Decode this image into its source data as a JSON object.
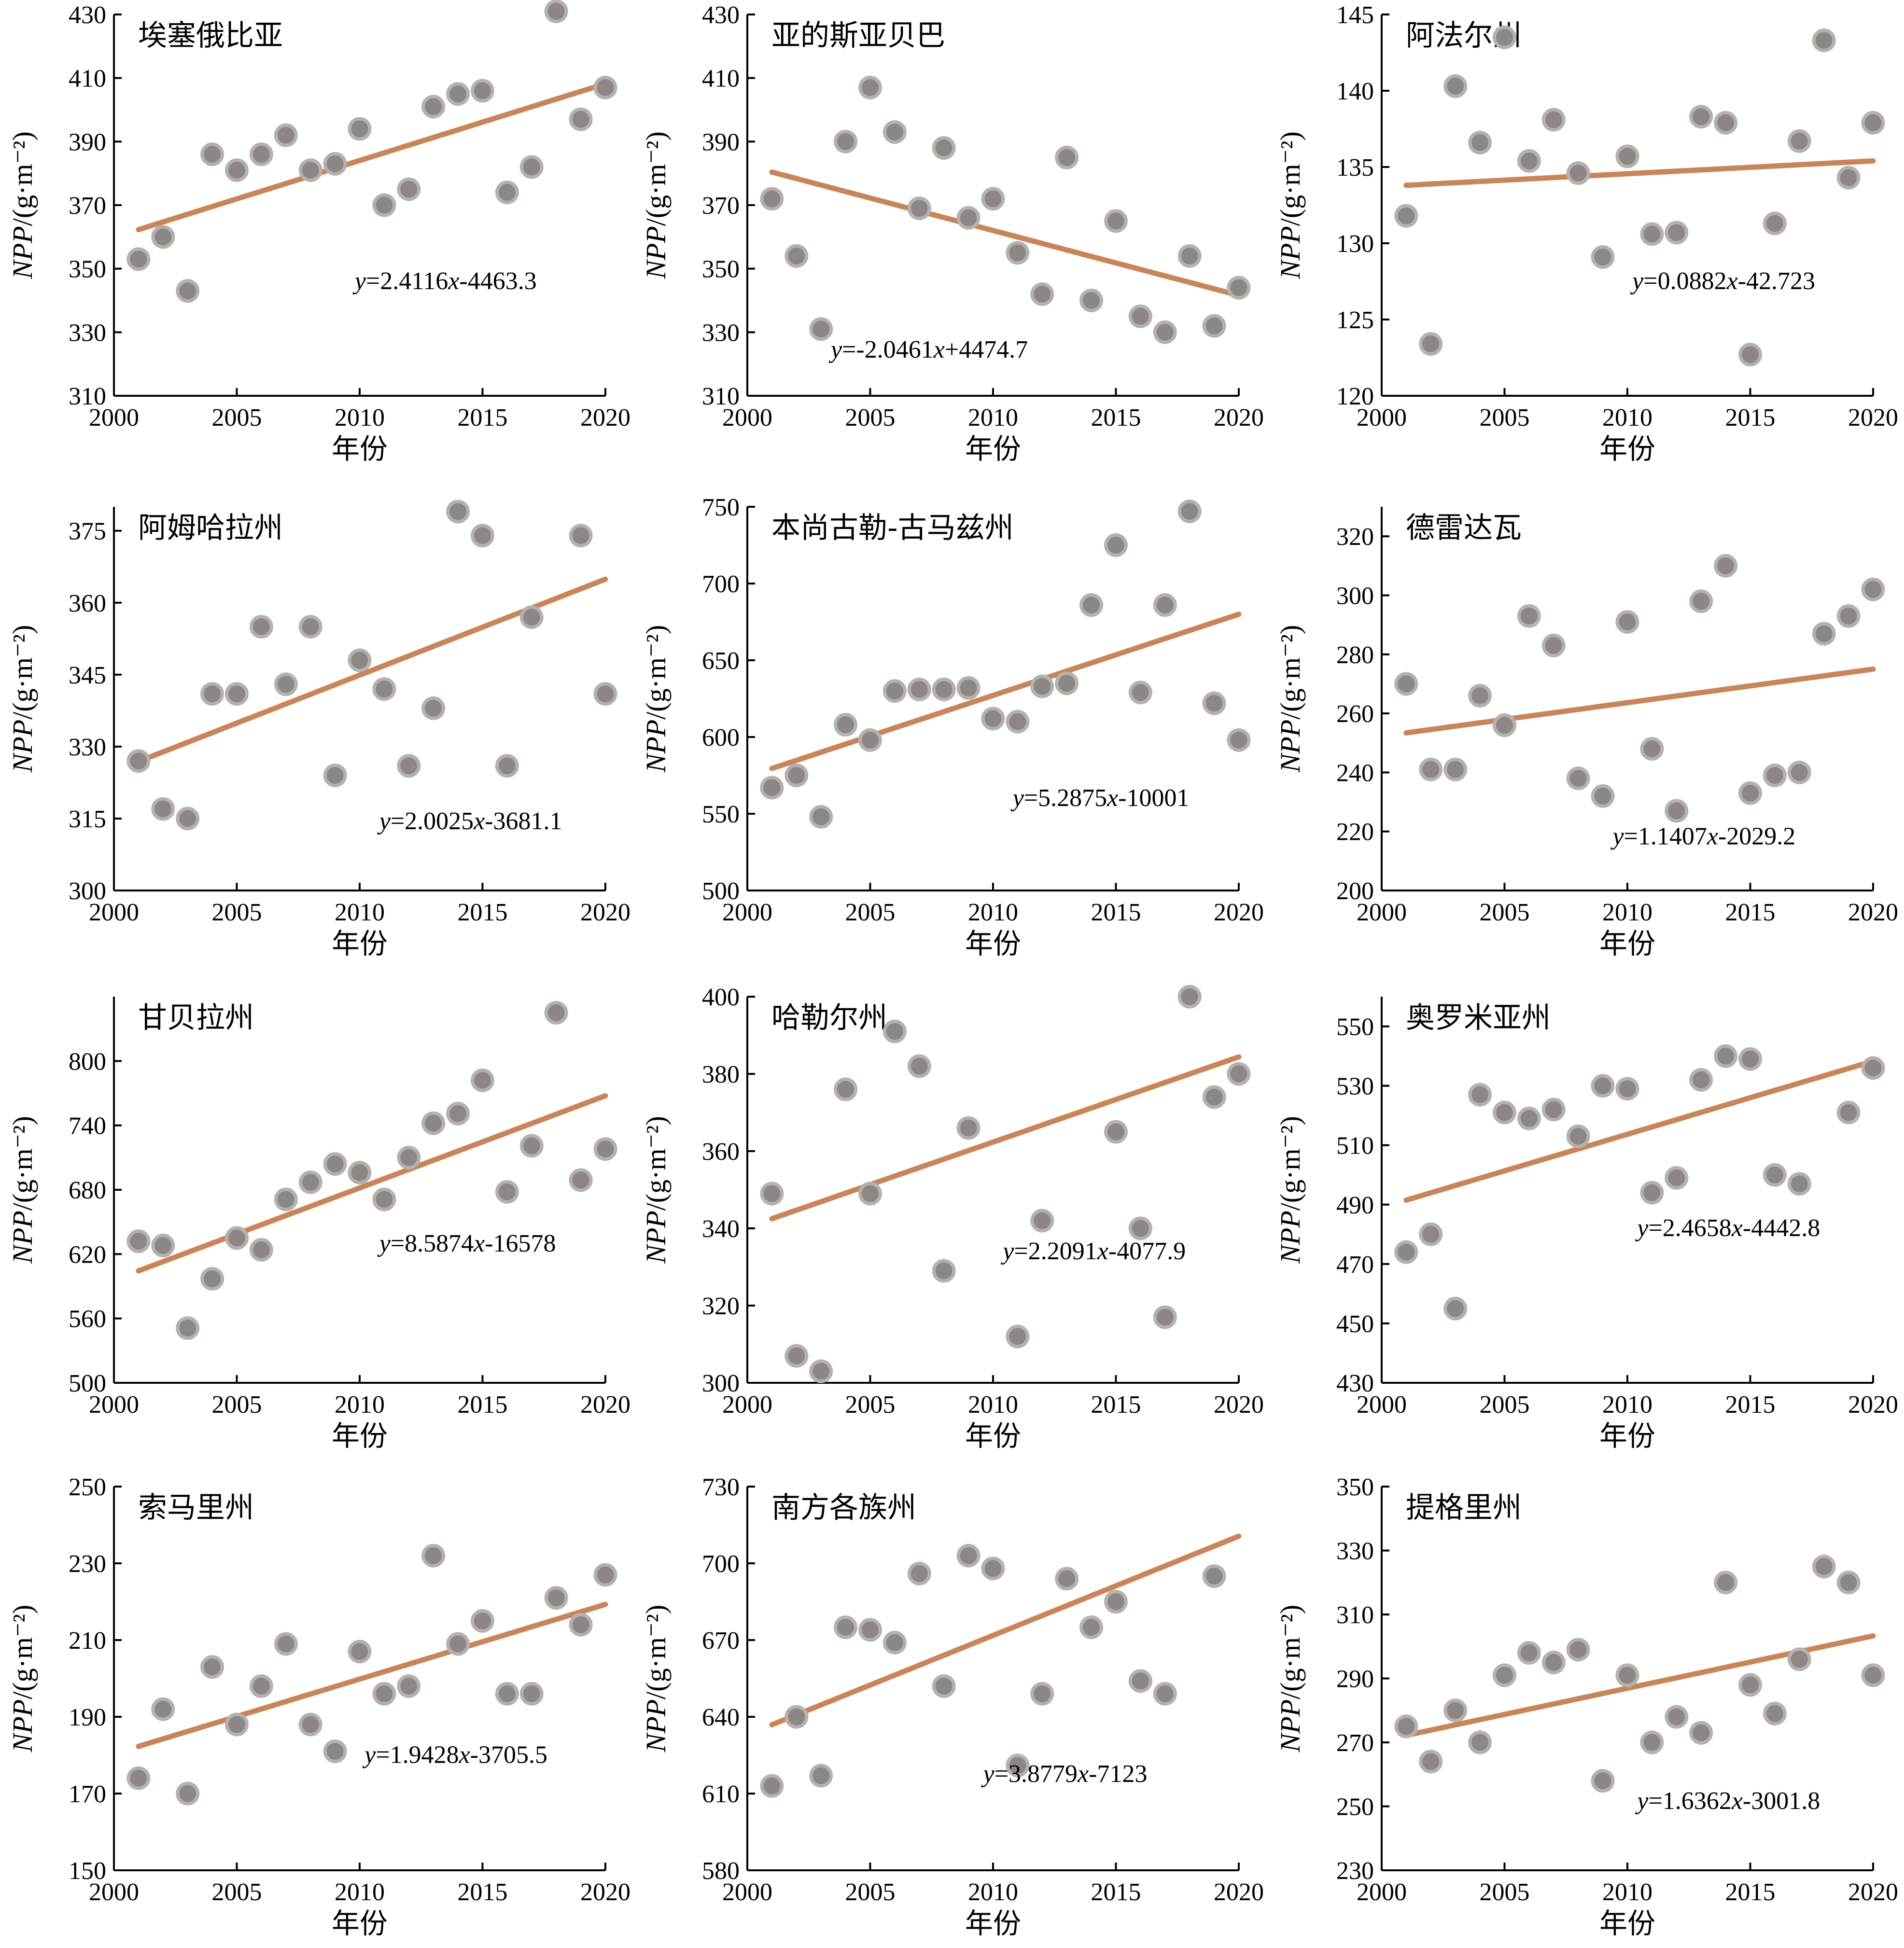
{
  "figure": {
    "xlabel": "年份",
    "ylabel": "NPP/(g·m⁻²)",
    "point_color": "#8c8784",
    "point_edge_color": "#b5b1ae",
    "line_color": "#c9855a"
  },
  "chart_data": [
    {
      "type": "scatter",
      "title": "埃塞俄比亚",
      "xlim": [
        2000,
        2020
      ],
      "ylim": [
        310,
        430
      ],
      "xticks": [
        2000,
        2005,
        2010,
        2015,
        2020
      ],
      "yticks": [
        310,
        330,
        350,
        370,
        390,
        410,
        430
      ],
      "equation": "y=2.4116x-4463.3",
      "trend": [
        [
          2001,
          362.3
        ],
        [
          2020,
          408.2
        ]
      ],
      "series": [
        {
          "x": [
            2001,
            2002,
            2003,
            2004,
            2005,
            2006,
            2007,
            2008,
            2009,
            2010,
            2011,
            2012,
            2013,
            2014,
            2015,
            2016,
            2017,
            2018,
            2019,
            2020
          ],
          "y": [
            353,
            360,
            343,
            386,
            381,
            386,
            392,
            381,
            383,
            394,
            370,
            375,
            401,
            405,
            406,
            374,
            382,
            431,
            397,
            407
          ]
        }
      ]
    },
    {
      "type": "scatter",
      "title": "亚的斯亚贝巴",
      "xlim": [
        2000,
        2020
      ],
      "ylim": [
        310,
        430
      ],
      "xticks": [
        2000,
        2005,
        2010,
        2015,
        2020
      ],
      "yticks": [
        310,
        330,
        350,
        370,
        390,
        410,
        430
      ],
      "equation": "y=-2.0461x+4474.7",
      "trend": [
        [
          2001,
          380.4
        ],
        [
          2020,
          341.6
        ]
      ],
      "series": [
        {
          "x": [
            2001,
            2002,
            2003,
            2004,
            2005,
            2006,
            2007,
            2008,
            2009,
            2010,
            2011,
            2012,
            2013,
            2014,
            2015,
            2016,
            2017,
            2018,
            2019,
            2020
          ],
          "y": [
            372,
            354,
            331,
            390,
            407,
            393,
            369,
            388,
            366,
            372,
            355,
            342,
            385,
            340,
            365,
            335,
            330,
            354,
            332,
            344
          ]
        }
      ]
    },
    {
      "type": "scatter",
      "title": "阿法尔州",
      "xlim": [
        2000,
        2020
      ],
      "ylim": [
        120,
        145
      ],
      "xticks": [
        2000,
        2005,
        2010,
        2015,
        2020
      ],
      "yticks": [
        120,
        125,
        130,
        135,
        140,
        145
      ],
      "equation": "y=0.0882x-42.723",
      "trend": [
        [
          2001,
          133.8
        ],
        [
          2020,
          135.4
        ]
      ],
      "series": [
        {
          "x": [
            2001,
            2002,
            2003,
            2004,
            2005,
            2006,
            2007,
            2008,
            2009,
            2010,
            2011,
            2012,
            2013,
            2014,
            2015,
            2016,
            2017,
            2018,
            2019,
            2020
          ],
          "y": [
            131.8,
            123.4,
            140.3,
            136.6,
            143.5,
            135.4,
            138.1,
            134.6,
            129.1,
            135.7,
            130.6,
            130.7,
            138.3,
            137.9,
            122.7,
            131.3,
            136.7,
            143.3,
            134.3,
            137.9
          ]
        }
      ]
    },
    {
      "type": "scatter",
      "title": "阿姆哈拉州",
      "xlim": [
        2000,
        2020
      ],
      "ylim": [
        300,
        380
      ],
      "xticks": [
        2000,
        2005,
        2010,
        2015,
        2020
      ],
      "yticks": [
        300,
        315,
        330,
        345,
        360,
        375
      ],
      "equation": "y=2.0025x-3681.1",
      "trend": [
        [
          2001,
          326.9
        ],
        [
          2020,
          364.9
        ]
      ],
      "series": [
        {
          "x": [
            2001,
            2002,
            2003,
            2004,
            2005,
            2006,
            2007,
            2008,
            2009,
            2010,
            2011,
            2012,
            2013,
            2014,
            2015,
            2016,
            2017,
            2018,
            2019,
            2020
          ],
          "y": [
            327,
            317,
            315,
            341,
            341,
            355,
            343,
            355,
            324,
            348,
            342,
            326,
            338,
            379,
            374,
            326,
            357,
            null,
            374,
            341
          ]
        }
      ]
    },
    {
      "type": "scatter",
      "title": "本尚古勒-古马兹州",
      "xlim": [
        2000,
        2020
      ],
      "ylim": [
        500,
        750
      ],
      "xticks": [
        2000,
        2005,
        2010,
        2015,
        2020
      ],
      "yticks": [
        500,
        550,
        600,
        650,
        700,
        750
      ],
      "equation": "y=5.2875x-10001",
      "trend": [
        [
          2001,
          579.5
        ],
        [
          2020,
          680.0
        ]
      ],
      "series": [
        {
          "x": [
            2001,
            2002,
            2003,
            2004,
            2005,
            2006,
            2007,
            2008,
            2009,
            2010,
            2011,
            2012,
            2013,
            2014,
            2015,
            2016,
            2017,
            2018,
            2019,
            2020
          ],
          "y": [
            567,
            575,
            548,
            608,
            598,
            630,
            631,
            631,
            632,
            612,
            610,
            633,
            635,
            686,
            725,
            629,
            686,
            747,
            622,
            598
          ]
        }
      ]
    },
    {
      "type": "scatter",
      "title": "德雷达瓦",
      "xlim": [
        2000,
        2020
      ],
      "ylim": [
        200,
        330
      ],
      "xticks": [
        2000,
        2005,
        2010,
        2015,
        2020
      ],
      "yticks": [
        200,
        220,
        240,
        260,
        280,
        300,
        320
      ],
      "equation": "y=1.1407x-2029.2",
      "trend": [
        [
          2001,
          253.4
        ],
        [
          2020,
          275.0
        ]
      ],
      "series": [
        {
          "x": [
            2001,
            2002,
            2003,
            2004,
            2005,
            2006,
            2007,
            2008,
            2009,
            2010,
            2011,
            2012,
            2013,
            2014,
            2015,
            2016,
            2017,
            2018,
            2019,
            2020
          ],
          "y": [
            270,
            241,
            241,
            266,
            256,
            293,
            283,
            238,
            232,
            291,
            248,
            227,
            298,
            310,
            233,
            239,
            240,
            287,
            293,
            302
          ]
        }
      ]
    },
    {
      "type": "scatter",
      "title": "甘贝拉州",
      "xlim": [
        2000,
        2020
      ],
      "ylim": [
        500,
        860
      ],
      "xticks": [
        2000,
        2005,
        2010,
        2015,
        2020
      ],
      "yticks": [
        500,
        560,
        620,
        680,
        740,
        800
      ],
      "equation": "y=8.5874x-16578",
      "trend": [
        [
          2001,
          604.4
        ],
        [
          2020,
          767.6
        ]
      ],
      "series": [
        {
          "x": [
            2001,
            2002,
            2003,
            2004,
            2005,
            2006,
            2007,
            2008,
            2009,
            2010,
            2011,
            2012,
            2013,
            2014,
            2015,
            2016,
            2017,
            2018,
            2019,
            2020
          ],
          "y": [
            632,
            628,
            551,
            597,
            635,
            624,
            671,
            687,
            704,
            696,
            671,
            710,
            742,
            751,
            782,
            678,
            721,
            845,
            689,
            718
          ]
        }
      ]
    },
    {
      "type": "scatter",
      "title": "哈勒尔州",
      "xlim": [
        2000,
        2020
      ],
      "ylim": [
        300,
        400
      ],
      "xticks": [
        2000,
        2005,
        2010,
        2015,
        2020
      ],
      "yticks": [
        300,
        320,
        340,
        360,
        380,
        400
      ],
      "equation": "y=2.2091x-4077.9",
      "trend": [
        [
          2001,
          342.5
        ],
        [
          2020,
          384.4
        ]
      ],
      "series": [
        {
          "x": [
            2001,
            2002,
            2003,
            2004,
            2005,
            2006,
            2007,
            2008,
            2009,
            2010,
            2011,
            2012,
            2013,
            2014,
            2015,
            2016,
            2017,
            2018,
            2019,
            2020
          ],
          "y": [
            349,
            307,
            303,
            376,
            349,
            391,
            382,
            329,
            366,
            null,
            312,
            342,
            null,
            null,
            365,
            340,
            317,
            400,
            374,
            380
          ]
        }
      ]
    },
    {
      "type": "scatter",
      "title": "奥罗米亚州",
      "xlim": [
        2000,
        2020
      ],
      "ylim": [
        430,
        560
      ],
      "xticks": [
        2000,
        2005,
        2010,
        2015,
        2020
      ],
      "yticks": [
        430,
        450,
        470,
        490,
        510,
        530,
        550
      ],
      "equation": "y=2.4658x-4442.8",
      "trend": [
        [
          2001,
          491.5
        ],
        [
          2020,
          538.3
        ]
      ],
      "series": [
        {
          "x": [
            2001,
            2002,
            2003,
            2004,
            2005,
            2006,
            2007,
            2008,
            2009,
            2010,
            2011,
            2012,
            2013,
            2014,
            2015,
            2016,
            2017,
            2018,
            2019,
            2020
          ],
          "y": [
            474,
            480,
            455,
            527,
            521,
            519,
            522,
            513,
            530,
            529,
            494,
            499,
            532,
            540,
            539,
            500,
            497,
            null,
            521,
            536
          ]
        }
      ]
    },
    {
      "type": "scatter",
      "title": "索马里州",
      "xlim": [
        2000,
        2020
      ],
      "ylim": [
        150,
        250
      ],
      "xticks": [
        2000,
        2005,
        2010,
        2015,
        2020
      ],
      "yticks": [
        150,
        170,
        190,
        210,
        230,
        250
      ],
      "equation": "y=1.9428x-3705.5",
      "trend": [
        [
          2001,
          182.3
        ],
        [
          2020,
          219.3
        ]
      ],
      "series": [
        {
          "x": [
            2001,
            2002,
            2003,
            2004,
            2005,
            2006,
            2007,
            2008,
            2009,
            2010,
            2011,
            2012,
            2013,
            2014,
            2015,
            2016,
            2017,
            2018,
            2019,
            2020
          ],
          "y": [
            174,
            192,
            170,
            203,
            188,
            198,
            209,
            188,
            181,
            207,
            196,
            198,
            232,
            209,
            215,
            196,
            196,
            221,
            214,
            227
          ]
        }
      ]
    },
    {
      "type": "scatter",
      "title": "南方各族州",
      "xlim": [
        2000,
        2020
      ],
      "ylim": [
        580,
        730
      ],
      "xticks": [
        2000,
        2005,
        2010,
        2015,
        2020
      ],
      "yticks": [
        580,
        610,
        640,
        670,
        700,
        730
      ],
      "equation": "y=3.8779x-7123",
      "trend": [
        [
          2001,
          636.9
        ],
        [
          2020,
          710.6
        ]
      ],
      "series": [
        {
          "x": [
            2001,
            2002,
            2003,
            2004,
            2005,
            2006,
            2007,
            2008,
            2009,
            2010,
            2011,
            2012,
            2013,
            2014,
            2015,
            2016,
            2017,
            2018,
            2019,
            2020
          ],
          "y": [
            613,
            640,
            617,
            675,
            674,
            669,
            696,
            652,
            703,
            698,
            621,
            649,
            694,
            675,
            685,
            654,
            649,
            null,
            695,
            null
          ]
        }
      ]
    },
    {
      "type": "scatter",
      "title": "提格里州",
      "xlim": [
        2000,
        2020
      ],
      "ylim": [
        230,
        350
      ],
      "xticks": [
        2000,
        2005,
        2010,
        2015,
        2020
      ],
      "yticks": [
        230,
        250,
        270,
        290,
        310,
        330,
        350
      ],
      "equation": "y=1.6362x-3001.8",
      "trend": [
        [
          2001,
          272.2
        ],
        [
          2020,
          303.3
        ]
      ],
      "series": [
        {
          "x": [
            2001,
            2002,
            2003,
            2004,
            2005,
            2006,
            2007,
            2008,
            2009,
            2010,
            2011,
            2012,
            2013,
            2014,
            2015,
            2016,
            2017,
            2018,
            2019,
            2020
          ],
          "y": [
            275,
            264,
            280,
            270,
            291,
            298,
            295,
            299,
            258,
            291,
            270,
            278,
            273,
            320,
            288,
            279,
            296,
            325,
            320,
            291
          ]
        }
      ]
    }
  ]
}
